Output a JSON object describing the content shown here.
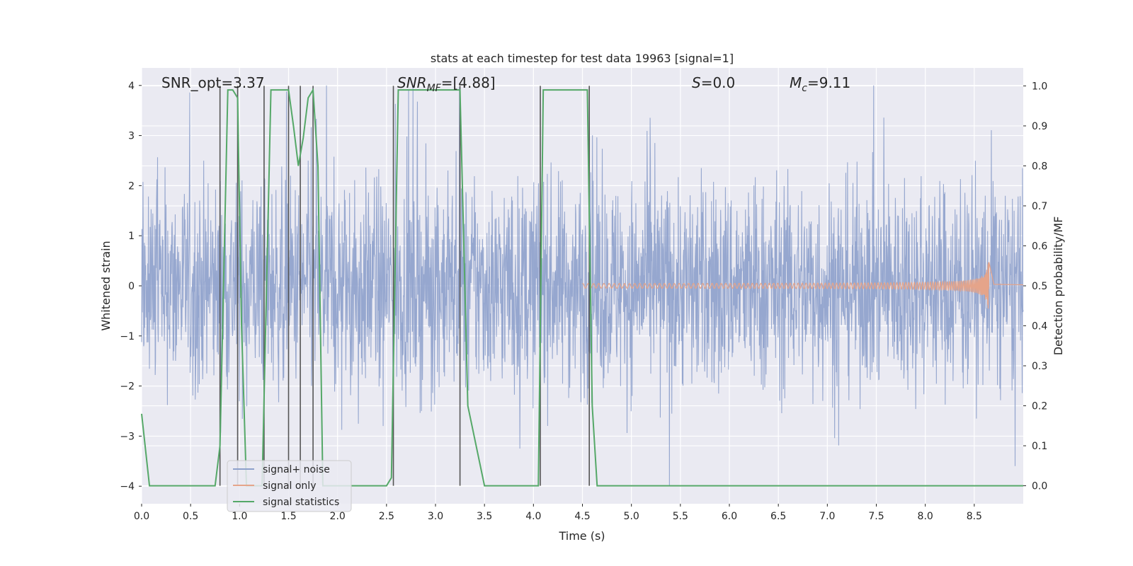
{
  "chart_data": {
    "type": "line",
    "title": "stats at each timestep for test data 19963 [signal=1]",
    "xlabel": "Time (s)",
    "ylabel_left": "Whitened strain",
    "ylabel_right": "Detection probability/MF",
    "xlim": [
      0.0,
      9.0
    ],
    "ylim_left": [
      -4.35,
      4.35
    ],
    "ylim_right": [
      -0.045,
      1.045
    ],
    "x_ticks": [
      "0.0",
      "0.5",
      "1.0",
      "1.5",
      "2.0",
      "2.5",
      "3.0",
      "3.5",
      "4.0",
      "4.5",
      "5.0",
      "5.5",
      "6.0",
      "6.5",
      "7.0",
      "7.5",
      "8.0",
      "8.5"
    ],
    "x_tick_values": [
      0,
      0.5,
      1,
      1.5,
      2,
      2.5,
      3,
      3.5,
      4,
      4.5,
      5,
      5.5,
      6,
      6.5,
      7,
      7.5,
      8,
      8.5
    ],
    "y_left_ticks": [
      "−4",
      "−3",
      "−2",
      "−1",
      "0",
      "1",
      "2",
      "3",
      "4"
    ],
    "y_left_tick_values": [
      -4,
      -3,
      -2,
      -1,
      0,
      1,
      2,
      3,
      4
    ],
    "y_right_ticks": [
      "0.0",
      "0.1",
      "0.2",
      "0.3",
      "0.4",
      "0.5",
      "0.6",
      "0.7",
      "0.8",
      "0.9",
      "1.0"
    ],
    "y_right_tick_values": [
      0,
      0.1,
      0.2,
      0.3,
      0.4,
      0.5,
      0.6,
      0.7,
      0.8,
      0.9,
      1.0
    ],
    "grid": true,
    "legend_position": "lower-left",
    "legend": [
      {
        "name": "signal+ noise",
        "color": "#8da0cb"
      },
      {
        "name": "signal only",
        "color": "#e5a48a"
      },
      {
        "name": "signal statistics",
        "color": "#55a868"
      }
    ],
    "annotations": [
      {
        "id": "snr-opt",
        "text": "SNR_opt=3.37",
        "x": 0.2,
        "y": 4.0
      },
      {
        "id": "snr-mf",
        "text": "SNR_MF=[4.88]",
        "x": 2.6,
        "y": 4.0
      },
      {
        "id": "s",
        "text": "S=0.0",
        "x": 5.6,
        "y": 4.0
      },
      {
        "id": "mc",
        "text": "M_c=9.11",
        "x": 6.6,
        "y": 4.0
      }
    ],
    "noise": {
      "x_range": [
        0.0,
        9.0
      ],
      "approx_spread": 4.0
    },
    "signal_only": {
      "x_range": [
        4.5,
        8.65
      ],
      "peak_amplitude": 0.6,
      "peak_time": 8.65
    },
    "statistics": {
      "x": [
        0.0,
        0.08,
        0.15,
        0.75,
        0.8,
        0.88,
        0.93,
        0.98,
        1.02,
        1.07,
        1.23,
        1.32,
        1.37,
        1.42,
        1.47,
        1.5,
        1.55,
        1.6,
        1.65,
        1.7,
        1.75,
        1.8,
        1.85,
        1.9,
        2.0,
        2.5,
        2.55,
        2.62,
        3.2,
        3.25,
        3.33,
        3.5,
        4.05,
        4.1,
        4.55,
        4.6,
        4.65,
        5.0,
        9.0
      ],
      "y": [
        0.18,
        0.0,
        0.0,
        0.0,
        0.1,
        0.99,
        0.99,
        0.97,
        0.4,
        0.0,
        0.0,
        0.99,
        0.99,
        0.99,
        0.99,
        0.99,
        0.9,
        0.8,
        0.87,
        0.97,
        0.99,
        0.8,
        0.0,
        0.0,
        0.0,
        0.0,
        0.02,
        0.99,
        0.99,
        0.99,
        0.2,
        0.0,
        0.0,
        0.99,
        0.99,
        0.2,
        0.0,
        0.0,
        0.0
      ]
    },
    "vlines": [
      0.8,
      0.98,
      1.25,
      1.5,
      1.62,
      1.75,
      2.57,
      3.25,
      4.07,
      4.57
    ]
  },
  "colors": {
    "axes_background": "#eaeaf2",
    "grid": "#ffffff",
    "noise": "#8da0cb",
    "signal_only": "#e5a48a",
    "statistics": "#55a868",
    "vlines": "#555555"
  }
}
